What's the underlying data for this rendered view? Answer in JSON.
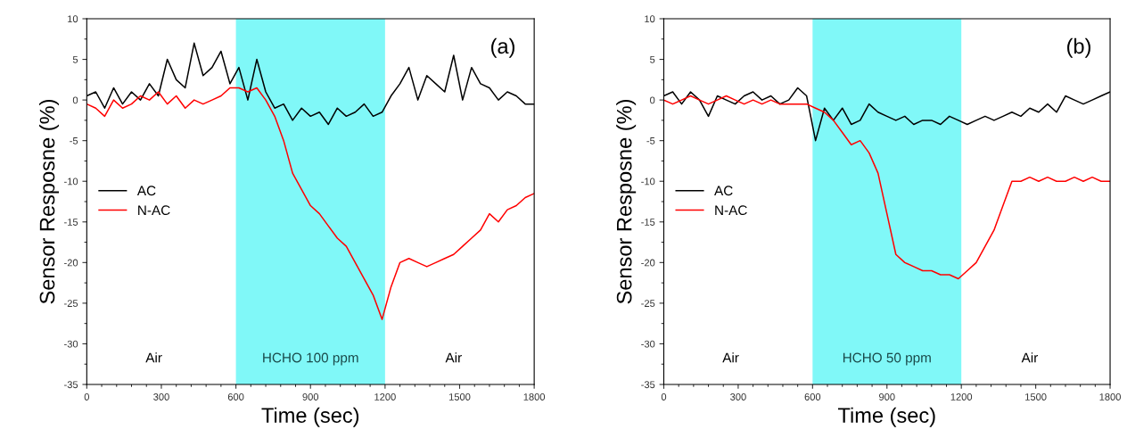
{
  "chart_data": [
    {
      "type": "line",
      "title": "(a)",
      "xlabel": "Time (sec)",
      "ylabel": "Sensor Resposne (%)",
      "x": [
        0,
        36,
        72,
        108,
        144,
        180,
        216,
        252,
        288,
        324,
        360,
        396,
        432,
        468,
        504,
        540,
        576,
        612,
        648,
        684,
        720,
        756,
        792,
        828,
        864,
        900,
        936,
        972,
        1008,
        1044,
        1080,
        1116,
        1152,
        1188,
        1224,
        1260,
        1296,
        1332,
        1368,
        1404,
        1440,
        1476,
        1512,
        1548,
        1584,
        1620,
        1656,
        1692,
        1728,
        1764,
        1800
      ],
      "series": [
        {
          "name": "AC",
          "color": "#000000",
          "values": [
            0.5,
            1,
            -1,
            1.5,
            -0.5,
            1,
            0,
            2,
            0.5,
            5,
            2.5,
            1.5,
            7,
            3,
            4,
            6,
            2,
            4,
            0,
            5,
            1,
            -1,
            -0.5,
            -2.5,
            -1,
            -2,
            -1.5,
            -3,
            -1,
            -2,
            -1.5,
            -0.5,
            -2,
            -1.5,
            0.5,
            2,
            4,
            0,
            3,
            2,
            1,
            5.5,
            0,
            4,
            2,
            1.5,
            0,
            1,
            0.5,
            -0.5,
            -0.5
          ]
        },
        {
          "name": "N-AC",
          "color": "#ff0000",
          "values": [
            -0.5,
            -1,
            -2,
            0,
            -1,
            -0.5,
            0.5,
            0,
            1,
            -0.5,
            0.5,
            -1,
            0,
            -0.5,
            0,
            0.5,
            1.5,
            1.5,
            1,
            1.5,
            0,
            -2,
            -5,
            -9,
            -11,
            -13,
            -14,
            -15.5,
            -17,
            -18,
            -20,
            -22,
            -24,
            -27,
            -23,
            -20,
            -19.5,
            -20,
            -20.5,
            -20,
            -19.5,
            -19,
            -18,
            -17,
            -16,
            -14,
            -15,
            -13.5,
            -13,
            -12,
            -11.5
          ]
        }
      ],
      "bands": [
        {
          "axis": "x",
          "from": 600,
          "to": 1200,
          "label": "HCHO 100 ppm",
          "color": "#80f8f8"
        }
      ],
      "annotations": [
        "Air",
        "Air"
      ],
      "xlim": [
        0,
        1800
      ],
      "xticks": [
        0,
        300,
        600,
        900,
        1200,
        1500,
        1800
      ],
      "ylim": [
        -35,
        10
      ],
      "yticks": [
        -35,
        -30,
        -25,
        -20,
        -15,
        -10,
        -5,
        0,
        5,
        10
      ],
      "legend": "left",
      "grid": false
    },
    {
      "type": "line",
      "title": "(b)",
      "xlabel": "Time (sec)",
      "ylabel": "Sensor Resposne (%)",
      "x": [
        0,
        36,
        72,
        108,
        144,
        180,
        216,
        252,
        288,
        324,
        360,
        396,
        432,
        468,
        504,
        540,
        576,
        612,
        648,
        684,
        720,
        756,
        792,
        828,
        864,
        900,
        936,
        972,
        1008,
        1044,
        1080,
        1116,
        1152,
        1188,
        1224,
        1260,
        1296,
        1332,
        1368,
        1404,
        1440,
        1476,
        1512,
        1548,
        1584,
        1620,
        1656,
        1692,
        1728,
        1764,
        1800
      ],
      "series": [
        {
          "name": "AC",
          "color": "#000000",
          "values": [
            0.5,
            1,
            -0.5,
            1,
            0,
            -2,
            0.5,
            0,
            -0.5,
            0.5,
            1,
            0,
            0.5,
            -0.5,
            0,
            1.5,
            0.5,
            -5,
            -1,
            -2.5,
            -1,
            -3,
            -2.5,
            -0.5,
            -1.5,
            -2,
            -2.5,
            -2,
            -3,
            -2.5,
            -2.5,
            -3,
            -2,
            -2.5,
            -3,
            -2.5,
            -2,
            -2.5,
            -2,
            -1.5,
            -2,
            -1,
            -1.5,
            -0.5,
            -1.5,
            0.5,
            0,
            -0.5,
            0,
            0.5,
            1
          ]
        },
        {
          "name": "N-AC",
          "color": "#ff0000",
          "values": [
            0,
            -0.5,
            0,
            0.5,
            0,
            -0.5,
            0,
            0.5,
            0,
            -0.5,
            0,
            -0.5,
            0,
            -0.5,
            -0.5,
            -0.5,
            -0.5,
            -1,
            -1.5,
            -2.5,
            -4,
            -5.5,
            -5,
            -6.5,
            -9,
            -14,
            -19,
            -20,
            -20.5,
            -21,
            -21,
            -21.5,
            -21.5,
            -22,
            -21,
            -20,
            -18,
            -16,
            -13,
            -10,
            -10,
            -9.5,
            -10,
            -9.5,
            -10,
            -10,
            -9.5,
            -10,
            -9.5,
            -10,
            -10
          ]
        }
      ],
      "bands": [
        {
          "axis": "x",
          "from": 600,
          "to": 1200,
          "label": "HCHO 50 ppm",
          "color": "#80f8f8"
        }
      ],
      "annotations": [
        "Air",
        "Air"
      ],
      "xlim": [
        0,
        1800
      ],
      "xticks": [
        0,
        300,
        600,
        900,
        1200,
        1500,
        1800
      ],
      "ylim": [
        -35,
        10
      ],
      "yticks": [
        -35,
        -30,
        -25,
        -20,
        -15,
        -10,
        -5,
        0,
        5,
        10
      ],
      "legend": "left",
      "grid": false
    }
  ]
}
